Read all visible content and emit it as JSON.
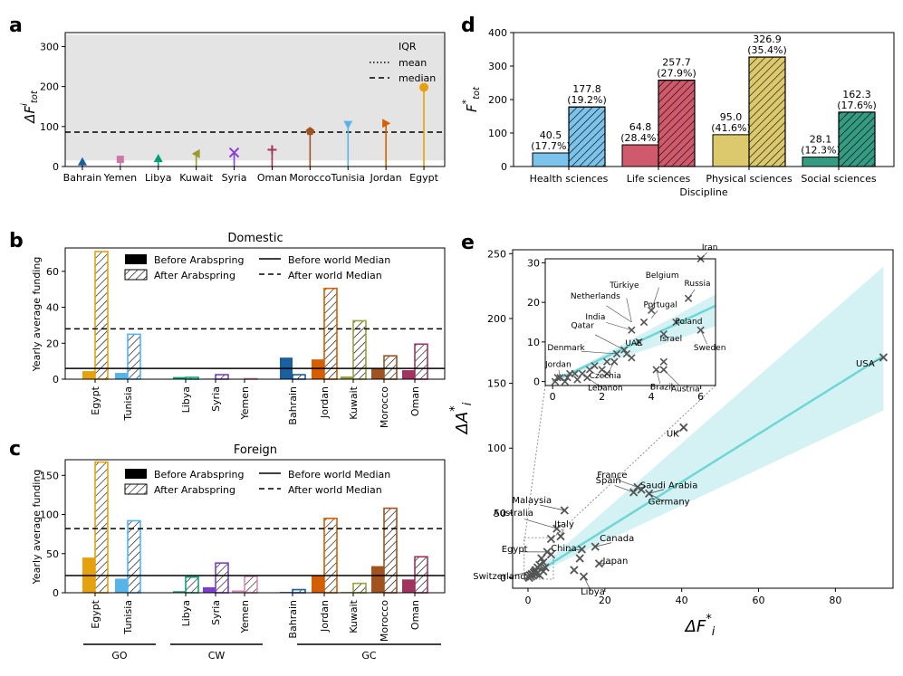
{
  "panel_labels": [
    "a",
    "b",
    "c",
    "d",
    "e"
  ],
  "chart_data": [
    {
      "id": "a",
      "type": "scatter",
      "subtype": "lollipop",
      "ylabel": "ΔF",
      "ylabel_sup": "i",
      "ylabel_sub": "tot",
      "ylim": [
        0,
        335
      ],
      "yticks": [
        0,
        100,
        200,
        300
      ],
      "categories": [
        "Bahrain",
        "Yemen",
        "Libya",
        "Kuwait",
        "Syria",
        "Oman",
        "Morocco",
        "Tunisia",
        "Jordan",
        "Egypt"
      ],
      "values": [
        12,
        18,
        20,
        32,
        35,
        42,
        88,
        105,
        108,
        198
      ],
      "colors": [
        "#1a5f9e",
        "#cc79a7",
        "#009e73",
        "#9a9a2e",
        "#8a3fd9",
        "#a0335f",
        "#a0531e",
        "#56b4e9",
        "#d55e00",
        "#e6a10f"
      ],
      "markers": [
        "triangle-up",
        "square",
        "triangle-up",
        "triangle-left",
        "x",
        "plus",
        "pentagon",
        "triangle-down",
        "triangle-right",
        "circle"
      ],
      "iqr": [
        15,
        330
      ],
      "mean": 86,
      "median": 86,
      "legend": [
        "IQR",
        "mean",
        "median"
      ]
    },
    {
      "id": "b",
      "type": "bar",
      "title": "Domestic",
      "ylabel": "Yearly average funding",
      "ylim": [
        0,
        73
      ],
      "yticks": [
        0,
        20,
        40,
        60
      ],
      "categories": [
        "Egypt",
        "Tunisia",
        "Libya",
        "Syria",
        "Yemen",
        "Bahrain",
        "Jordan",
        "Kuwait",
        "Morocco",
        "Oman"
      ],
      "series": [
        {
          "name": "Before Arabspring",
          "values": [
            4.5,
            3.5,
            1.2,
            0.3,
            0.2,
            12,
            11,
            1.5,
            6,
            5
          ]
        },
        {
          "name": "After Arabspring",
          "values": [
            71,
            25,
            1,
            2.5,
            0.3,
            2.5,
            50.5,
            32.5,
            13,
            19.5
          ]
        }
      ],
      "before_world_median": 6,
      "after_world_median": 28,
      "legend": [
        "Before Arabspring",
        "After Arabspring",
        "Before world Median",
        "After world Median"
      ]
    },
    {
      "id": "c",
      "type": "bar",
      "title": "Foreign",
      "ylabel": "Yearly average funding",
      "ylim": [
        0,
        170
      ],
      "yticks": [
        0,
        50,
        100,
        150
      ],
      "categories": [
        "Egypt",
        "Tunisia",
        "Libya",
        "Syria",
        "Yemen",
        "Bahrain",
        "Jordan",
        "Kuwait",
        "Morocco",
        "Oman"
      ],
      "series": [
        {
          "name": "Before Arabspring",
          "values": [
            45,
            18,
            2,
            7,
            3,
            1,
            22,
            1,
            34,
            17
          ]
        },
        {
          "name": "After Arabspring",
          "values": [
            167,
            92,
            20,
            38,
            21,
            4,
            95,
            12,
            108,
            46
          ]
        }
      ],
      "before_world_median": 22,
      "after_world_median": 82,
      "legend": [
        "Before Arabspring",
        "After Arabspring",
        "Before world Median",
        "After world Median"
      ],
      "groups": [
        {
          "label": "GO",
          "members": [
            "Egypt",
            "Tunisia"
          ]
        },
        {
          "label": "CW",
          "members": [
            "Libya",
            "Syria",
            "Yemen"
          ]
        },
        {
          "label": "GC",
          "members": [
            "Bahrain",
            "Jordan",
            "Kuwait",
            "Morocco",
            "Oman"
          ]
        }
      ]
    },
    {
      "id": "d",
      "type": "bar",
      "xlabel": "Discipline",
      "ylabel": "F",
      "ylabel_sup": "*",
      "ylabel_sub": "tot",
      "ylim": [
        0,
        400
      ],
      "yticks": [
        0,
        100,
        200,
        300,
        400
      ],
      "categories": [
        "Health sciences",
        "Life sciences",
        "Physical sciences",
        "Social sciences"
      ],
      "colors": [
        "#7cc3ec",
        "#cf5a6b",
        "#dcc96d",
        "#359c84"
      ],
      "series": [
        {
          "name": "before",
          "values": [
            40.5,
            64.8,
            95.0,
            28.1
          ],
          "labels": [
            "40.5",
            "64.8",
            "95.0",
            "28.1"
          ],
          "pct": [
            "(17.7%)",
            "(28.4%)",
            "(41.6%)",
            "(12.3%)"
          ]
        },
        {
          "name": "after",
          "values": [
            177.8,
            257.7,
            326.9,
            162.3
          ],
          "labels": [
            "177.8",
            "257.7",
            "326.9",
            "162.3"
          ],
          "pct": [
            "(19.2%)",
            "(27.9%)",
            "(35.4%)",
            "(17.6%)"
          ]
        }
      ]
    },
    {
      "id": "e",
      "type": "scatter",
      "xlabel": "ΔF",
      "xlabel_sup": "*",
      "xlabel_sub": "i",
      "ylabel": "ΔA",
      "ylabel_sup": "*",
      "ylabel_sub": "i",
      "xlim": [
        -4,
        95
      ],
      "ylim": [
        -8,
        253
      ],
      "xticks": [
        0,
        20,
        40,
        60,
        80
      ],
      "yticks": [
        0,
        50,
        100,
        150,
        200,
        250
      ],
      "fit": {
        "slope": 1.85,
        "intercept": 0,
        "ci_end": [
          129,
          240
        ]
      },
      "points": [
        [
          92.5,
          170
        ],
        [
          40.5,
          116
        ],
        [
          28.5,
          70
        ],
        [
          29.5,
          68
        ],
        [
          31.5,
          65
        ],
        [
          27.5,
          66
        ],
        [
          9.5,
          52
        ],
        [
          7.5,
          38
        ],
        [
          8.5,
          32
        ],
        [
          6,
          30
        ],
        [
          5,
          20
        ],
        [
          6,
          18
        ],
        [
          17.5,
          24
        ],
        [
          14,
          22
        ],
        [
          13.5,
          15
        ],
        [
          18.5,
          11
        ],
        [
          12,
          6
        ],
        [
          14.5,
          1
        ],
        [
          3.5,
          15
        ],
        [
          4,
          12
        ],
        [
          3,
          10
        ],
        [
          2.5,
          8
        ],
        [
          2,
          6
        ],
        [
          1.5,
          4
        ],
        [
          1,
          3
        ],
        [
          0.5,
          2
        ],
        [
          0.8,
          1
        ],
        [
          1.2,
          2
        ],
        [
          0,
          1
        ],
        [
          0.3,
          0
        ],
        [
          1.8,
          5
        ],
        [
          2.2,
          3
        ],
        [
          3,
          2
        ],
        [
          4,
          5
        ],
        [
          4.5,
          8
        ]
      ],
      "labels": [
        {
          "text": "USA",
          "x": 92.5,
          "y": 170
        },
        {
          "text": "UK",
          "x": 40.5,
          "y": 116
        },
        {
          "text": "France",
          "x": 28.5,
          "y": 70
        },
        {
          "text": "Saudi Arabia",
          "x": 31.5,
          "y": 65
        },
        {
          "text": "Germany",
          "x": 31.5,
          "y": 65
        },
        {
          "text": "Spain",
          "x": 27.5,
          "y": 66
        },
        {
          "text": "Malaysia",
          "x": 9.5,
          "y": 52
        },
        {
          "text": "Australia",
          "x": 7.5,
          "y": 38
        },
        {
          "text": "Italy",
          "x": 8.5,
          "y": 32
        },
        {
          "text": "Canada",
          "x": 17.5,
          "y": 24
        },
        {
          "text": "China",
          "x": 14,
          "y": 22
        },
        {
          "text": "Japan",
          "x": 18.5,
          "y": 11
        },
        {
          "text": "Egypt",
          "x": 5,
          "y": 20
        },
        {
          "text": "Switzerland",
          "x": 2,
          "y": 6
        },
        {
          "text": "Libya",
          "x": 14.5,
          "y": 1
        }
      ],
      "inset": {
        "xlim": [
          -0.3,
          6.6
        ],
        "ylim": [
          -1,
          31
        ],
        "xticks": [
          0,
          2,
          4,
          6
        ],
        "yticks": [
          0,
          10,
          20,
          30
        ],
        "fit_slope": 2.9,
        "points": [
          [
            6,
            31
          ],
          [
            5.5,
            21
          ],
          [
            4,
            18
          ],
          [
            5,
            15
          ],
          [
            6,
            13
          ],
          [
            4.5,
            12
          ],
          [
            3.7,
            15
          ],
          [
            3.2,
            13
          ],
          [
            3.5,
            10
          ],
          [
            2.9,
            8
          ],
          [
            2.6,
            7
          ],
          [
            3,
            7
          ],
          [
            3.2,
            6
          ],
          [
            4.5,
            5
          ],
          [
            4.5,
            3
          ],
          [
            4.2,
            3
          ],
          [
            2.5,
            5
          ],
          [
            2.2,
            5
          ],
          [
            1.7,
            4
          ],
          [
            2,
            3
          ],
          [
            1.5,
            3
          ],
          [
            1.2,
            2
          ],
          [
            0.9,
            2
          ],
          [
            0.6,
            1
          ],
          [
            0.3,
            1
          ],
          [
            0.1,
            0
          ],
          [
            0.5,
            0
          ],
          [
            1.0,
            0.5
          ],
          [
            1.4,
            1
          ],
          [
            0.2,
            1
          ],
          [
            0.7,
            2
          ],
          [
            2.2,
            2
          ]
        ],
        "labels": [
          {
            "text": "Iran",
            "x": 6,
            "y": 31
          },
          {
            "text": "Türkiye",
            "x": 3.2,
            "y": 15
          },
          {
            "text": "Belgium",
            "x": 4,
            "y": 18
          },
          {
            "text": "Netherlands",
            "x": 3.2,
            "y": 15
          },
          {
            "text": "Russia",
            "x": 5.5,
            "y": 21
          },
          {
            "text": "India",
            "x": 3.2,
            "y": 13
          },
          {
            "text": "Portugal",
            "x": 4,
            "y": 16
          },
          {
            "text": "Qatar",
            "x": 2.9,
            "y": 8
          },
          {
            "text": "UAE",
            "x": 3.5,
            "y": 10
          },
          {
            "text": "Poland",
            "x": 5,
            "y": 15
          },
          {
            "text": "Denmark",
            "x": 2.6,
            "y": 7
          },
          {
            "text": "Israel",
            "x": 4.5,
            "y": 12
          },
          {
            "text": "Czechia",
            "x": 2.5,
            "y": 5
          },
          {
            "text": "Sweden",
            "x": 6,
            "y": 13
          },
          {
            "text": "Jordan",
            "x": 0.3,
            "y": 1
          },
          {
            "text": "Lebanon",
            "x": 1.4,
            "y": 1
          },
          {
            "text": "Brazil",
            "x": 4.2,
            "y": 3
          },
          {
            "text": "Austria",
            "x": 4.5,
            "y": 3
          }
        ]
      }
    }
  ]
}
